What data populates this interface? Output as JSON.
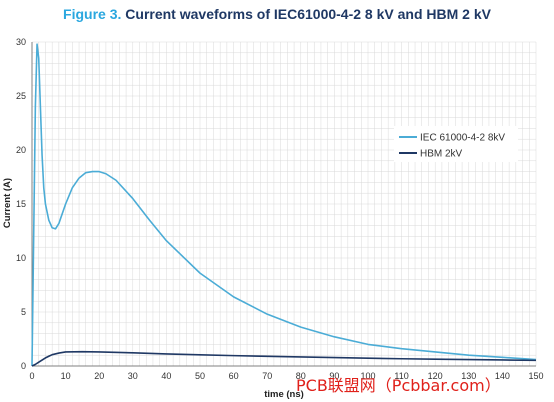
{
  "figure_label": "Figure 3.",
  "figure_title": "Current waveforms of IEC61000-4-2 8 kV and HBM 2 kV",
  "watermark": "PCB联盟网（Pcbbar.com）",
  "colors": {
    "iec": "#4bacd6",
    "hbm": "#1f3864",
    "grid": "#d9d9d9"
  },
  "chart_data": {
    "type": "line",
    "xlabel": "time (ns)",
    "ylabel": "Current (A)",
    "xlim": [
      0,
      150
    ],
    "ylim": [
      0,
      30
    ],
    "x_ticks": [
      0,
      10,
      20,
      30,
      40,
      50,
      60,
      70,
      80,
      90,
      100,
      110,
      120,
      130,
      140,
      150
    ],
    "y_ticks": [
      0,
      5,
      10,
      15,
      20,
      25,
      30
    ],
    "grid": true,
    "legend_position": "right",
    "series": [
      {
        "name": "IEC 61000-4-2 8kV",
        "x": [
          0,
          0.5,
          1,
          1.5,
          2,
          2.5,
          3,
          3.5,
          4,
          5,
          6,
          7,
          8,
          10,
          12,
          14,
          16,
          18,
          20,
          22,
          25,
          30,
          35,
          40,
          50,
          60,
          70,
          80,
          90,
          100,
          110,
          120,
          130,
          140,
          150
        ],
        "y": [
          0,
          12,
          24,
          29.8,
          28.5,
          24,
          19.5,
          16.5,
          15,
          13.5,
          12.8,
          12.7,
          13.2,
          15,
          16.5,
          17.4,
          17.9,
          18,
          18,
          17.8,
          17.2,
          15.5,
          13.5,
          11.6,
          8.6,
          6.4,
          4.8,
          3.6,
          2.7,
          2.0,
          1.6,
          1.3,
          1.0,
          0.8,
          0.6
        ]
      },
      {
        "name": "HBM 2kV",
        "x": [
          0,
          1,
          2,
          3,
          4,
          5,
          6,
          8,
          10,
          15,
          20,
          30,
          40,
          50,
          60,
          70,
          80,
          90,
          100,
          110,
          120,
          130,
          140,
          150
        ],
        "y": [
          0,
          0.15,
          0.35,
          0.55,
          0.75,
          0.9,
          1.05,
          1.2,
          1.3,
          1.33,
          1.3,
          1.22,
          1.12,
          1.04,
          0.96,
          0.9,
          0.84,
          0.78,
          0.72,
          0.67,
          0.63,
          0.6,
          0.56,
          0.52
        ]
      }
    ]
  }
}
